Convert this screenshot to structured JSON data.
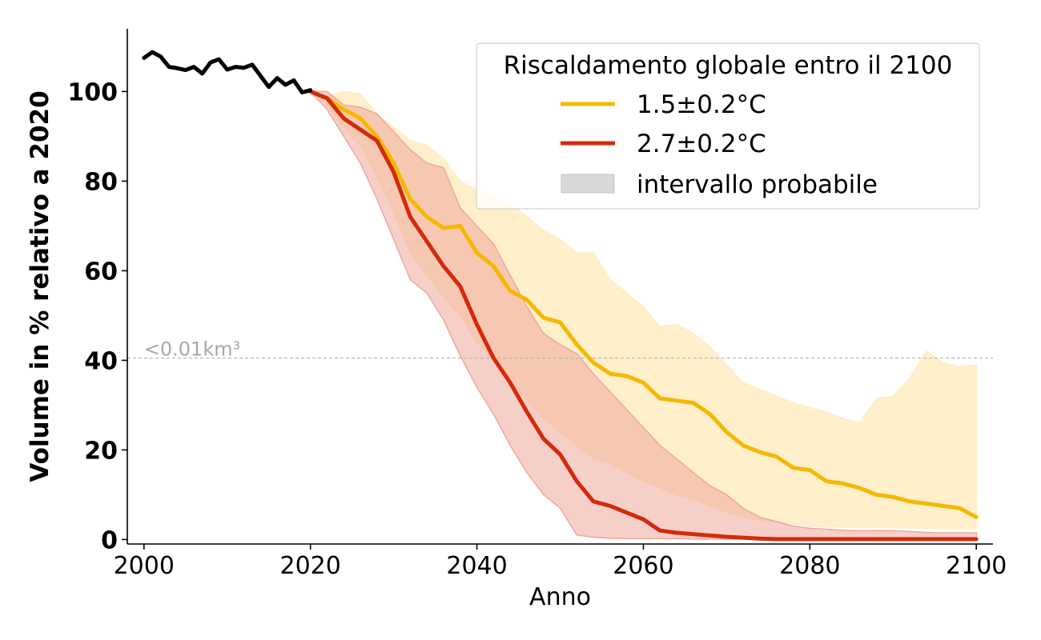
{
  "chart_data": {
    "type": "line",
    "xlabel": "Anno",
    "ylabel": "Volume in % relativo a 2020",
    "xlim": [
      1998,
      2102
    ],
    "ylim": [
      -1,
      114
    ],
    "x_ticks": [
      2000,
      2020,
      2040,
      2060,
      2080,
      2100
    ],
    "y_ticks": [
      0,
      20,
      40,
      60,
      80,
      100
    ],
    "grid": false,
    "legend": {
      "title": "Riscaldamento globale entro il 2100",
      "placement": "top-right",
      "entries": [
        "1.5±0.2°C",
        "2.7±0.2°C",
        "intervallo probabile"
      ]
    },
    "annotation": {
      "text": "<0.01km³",
      "y": 40.5
    },
    "colors": {
      "historical": "#000000",
      "yellow": "#f5b800",
      "red": "#d42a0a",
      "yellow_band": "#ffedc2",
      "red_band": "#f0a89c",
      "legend_patch": "#d8d8d8",
      "threshold": "#b8b8b8"
    },
    "historical": {
      "x": [
        2000,
        2001,
        2002,
        2003,
        2004,
        2005,
        2006,
        2007,
        2008,
        2009,
        2010,
        2011,
        2012,
        2013,
        2014,
        2015,
        2016,
        2017,
        2018,
        2019,
        2020
      ],
      "y": [
        107.5,
        108.8,
        107.8,
        105.5,
        105.2,
        104.8,
        105.5,
        104.0,
        106.5,
        107.2,
        104.9,
        105.5,
        105.3,
        106.0,
        103.5,
        101.0,
        103.0,
        101.5,
        102.5,
        99.8,
        100.3
      ]
    },
    "series": [
      {
        "name": "1.5±0.2°C",
        "color": "#f5b800",
        "x": [
          2020,
          2022,
          2024,
          2026,
          2028,
          2030,
          2032,
          2034,
          2036,
          2038,
          2040,
          2042,
          2044,
          2046,
          2048,
          2050,
          2052,
          2054,
          2056,
          2058,
          2060,
          2062,
          2064,
          2066,
          2068,
          2070,
          2072,
          2074,
          2076,
          2078,
          2080,
          2082,
          2084,
          2086,
          2088,
          2090,
          2092,
          2094,
          2096,
          2098,
          2100
        ],
        "y": [
          100,
          98.5,
          96,
          94,
          90,
          84,
          76,
          72,
          69.5,
          70,
          64,
          61,
          55.5,
          53.5,
          49.5,
          48.5,
          43.5,
          39.5,
          37,
          36.5,
          35,
          31.5,
          31,
          30.5,
          28,
          24,
          21,
          19.5,
          18.5,
          16,
          15.5,
          13,
          12.5,
          11.5,
          10,
          9.5,
          8.5,
          8,
          7.5,
          7,
          5
        ]
      },
      {
        "name": "2.7±0.2°C",
        "color": "#d42a0a",
        "x": [
          2020,
          2022,
          2024,
          2026,
          2028,
          2030,
          2032,
          2034,
          2036,
          2038,
          2040,
          2042,
          2044,
          2046,
          2048,
          2050,
          2052,
          2054,
          2056,
          2058,
          2060,
          2062,
          2064,
          2066,
          2068,
          2070,
          2072,
          2074,
          2076,
          2080,
          2085,
          2090,
          2095,
          2100
        ],
        "y": [
          100,
          98.5,
          94,
          91.5,
          89,
          82,
          72,
          66.5,
          61,
          56.5,
          48,
          40.5,
          35,
          28.5,
          22.5,
          19,
          13,
          8.5,
          7.5,
          6,
          4.5,
          2,
          1.5,
          1.2,
          0.9,
          0.6,
          0.4,
          0.2,
          0.1,
          0.1,
          0.1,
          0.1,
          0.1,
          0.1
        ]
      }
    ],
    "bands": [
      {
        "series": "1.5±0.2°C",
        "color": "#ffedc2",
        "x": [
          2020,
          2022,
          2024,
          2026,
          2028,
          2030,
          2032,
          2034,
          2036,
          2038,
          2040,
          2042,
          2044,
          2046,
          2048,
          2050,
          2052,
          2054,
          2056,
          2058,
          2060,
          2062,
          2064,
          2066,
          2068,
          2070,
          2072,
          2074,
          2076,
          2078,
          2080,
          2082,
          2084,
          2086,
          2088,
          2090,
          2092,
          2094,
          2096,
          2098,
          2100
        ],
        "upper": [
          100,
          99,
          100,
          99.5,
          95,
          92,
          89,
          88,
          85,
          80,
          78,
          77,
          75,
          72,
          69,
          67,
          64,
          64,
          58,
          55,
          52,
          47.5,
          48,
          46,
          43,
          39,
          35,
          33.5,
          32,
          30.5,
          29.5,
          28.5,
          27,
          26,
          31.5,
          32,
          36,
          42,
          39.5,
          38.5,
          39
        ],
        "lower": [
          100,
          97,
          92,
          88,
          81,
          73,
          64,
          59,
          54,
          50,
          44,
          40,
          35,
          31,
          27,
          24,
          21,
          18,
          17,
          15,
          13,
          11.5,
          10,
          9,
          7.5,
          6.2,
          5,
          4.2,
          3.8,
          3.5,
          3,
          2.8,
          2.8,
          2.7,
          2.7,
          2.6,
          2.6,
          2.5,
          2.5,
          2.5,
          2.5
        ]
      },
      {
        "series": "2.7±0.2°C",
        "color": "#f0a89c",
        "x": [
          2020,
          2022,
          2024,
          2026,
          2028,
          2030,
          2032,
          2034,
          2036,
          2038,
          2040,
          2042,
          2044,
          2046,
          2048,
          2050,
          2052,
          2054,
          2056,
          2058,
          2060,
          2062,
          2064,
          2066,
          2068,
          2070,
          2072,
          2074,
          2076,
          2078,
          2080,
          2085,
          2090,
          2095,
          2100
        ],
        "upper": [
          100,
          100,
          97,
          96.5,
          95,
          91,
          87,
          84,
          83,
          74,
          70,
          66,
          59,
          52,
          46,
          43.5,
          41.5,
          37,
          33,
          29,
          25,
          21,
          18,
          15,
          12,
          10,
          7,
          5,
          4,
          3,
          2.5,
          2,
          2,
          1.5,
          1.5
        ],
        "lower": [
          100,
          96,
          90,
          84,
          76,
          67,
          58,
          55,
          49,
          41,
          34,
          28,
          21,
          15,
          10,
          7,
          1,
          0.5,
          0.3,
          0.2,
          0.2,
          0.2,
          0.2,
          0.1,
          0.1,
          0.1,
          0.1,
          0.1,
          0.1,
          0.1,
          0.1,
          0.1,
          0.1,
          0.1,
          0.1
        ]
      }
    ]
  }
}
